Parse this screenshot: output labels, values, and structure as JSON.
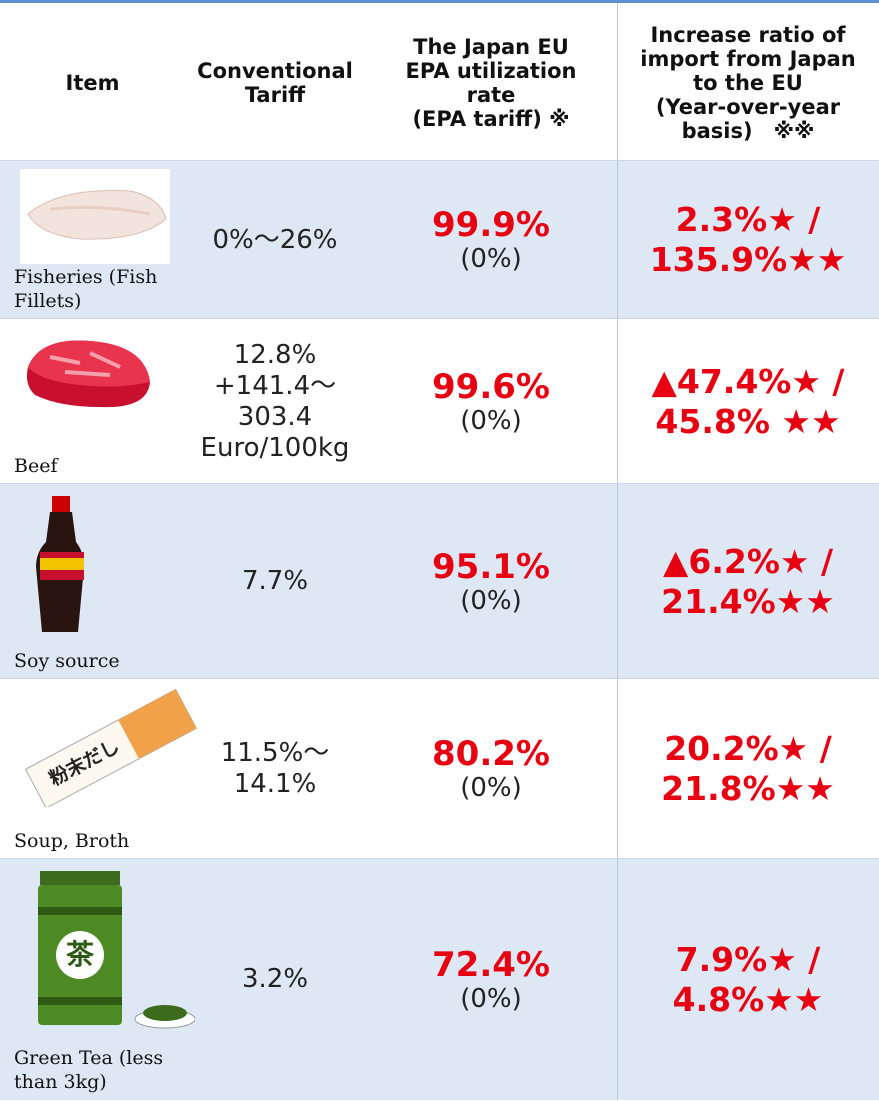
{
  "table": {
    "headers": [
      [
        "Item"
      ],
      [
        "Conventional",
        "Tariff"
      ],
      [
        "The Japan EU",
        "EPA utilization",
        "rate",
        "(EPA tariff) ※"
      ],
      [
        "Increase ratio of",
        "import from Japan",
        "to the EU",
        "(Year-over-year",
        "basis)　※※"
      ]
    ],
    "rows": [
      {
        "item": [
          "Fisheries (Fish",
          "Fillets)"
        ],
        "tariff": [
          "0%～26%"
        ],
        "rate": "99.9%",
        "epa_tariff": "(0%)",
        "increase": [
          "2.3%★ /",
          "135.9%★★"
        ]
      },
      {
        "item": [
          "Beef"
        ],
        "tariff": [
          "12.8%",
          "+141.4～",
          "303.4",
          "Euro/100kg"
        ],
        "rate": "99.6%",
        "epa_tariff": "(0%)",
        "increase": [
          "▲47.4%★ /",
          "45.8% ★★"
        ]
      },
      {
        "item": [
          "Soy source"
        ],
        "tariff": [
          "7.7%"
        ],
        "rate": "95.1%",
        "epa_tariff": "(0%)",
        "increase": [
          "▲6.2%★ /",
          "21.4%★★"
        ]
      },
      {
        "item": [
          "Soup, Broth"
        ],
        "tariff": [
          "11.5%～",
          "14.1%"
        ],
        "rate": "80.2%",
        "epa_tariff": "(0%)",
        "increase": [
          "20.2%★ /",
          "21.8%★★"
        ],
        "icon_text": "粉末だし"
      },
      {
        "item": [
          "Green Tea (less than 3kg)"
        ],
        "tariff": [
          "3.2%"
        ],
        "rate": "72.4%",
        "epa_tariff": "(0%)",
        "increase": [
          "7.9%★ /",
          "4.8%★★"
        ],
        "icon_text": "茶"
      }
    ]
  }
}
